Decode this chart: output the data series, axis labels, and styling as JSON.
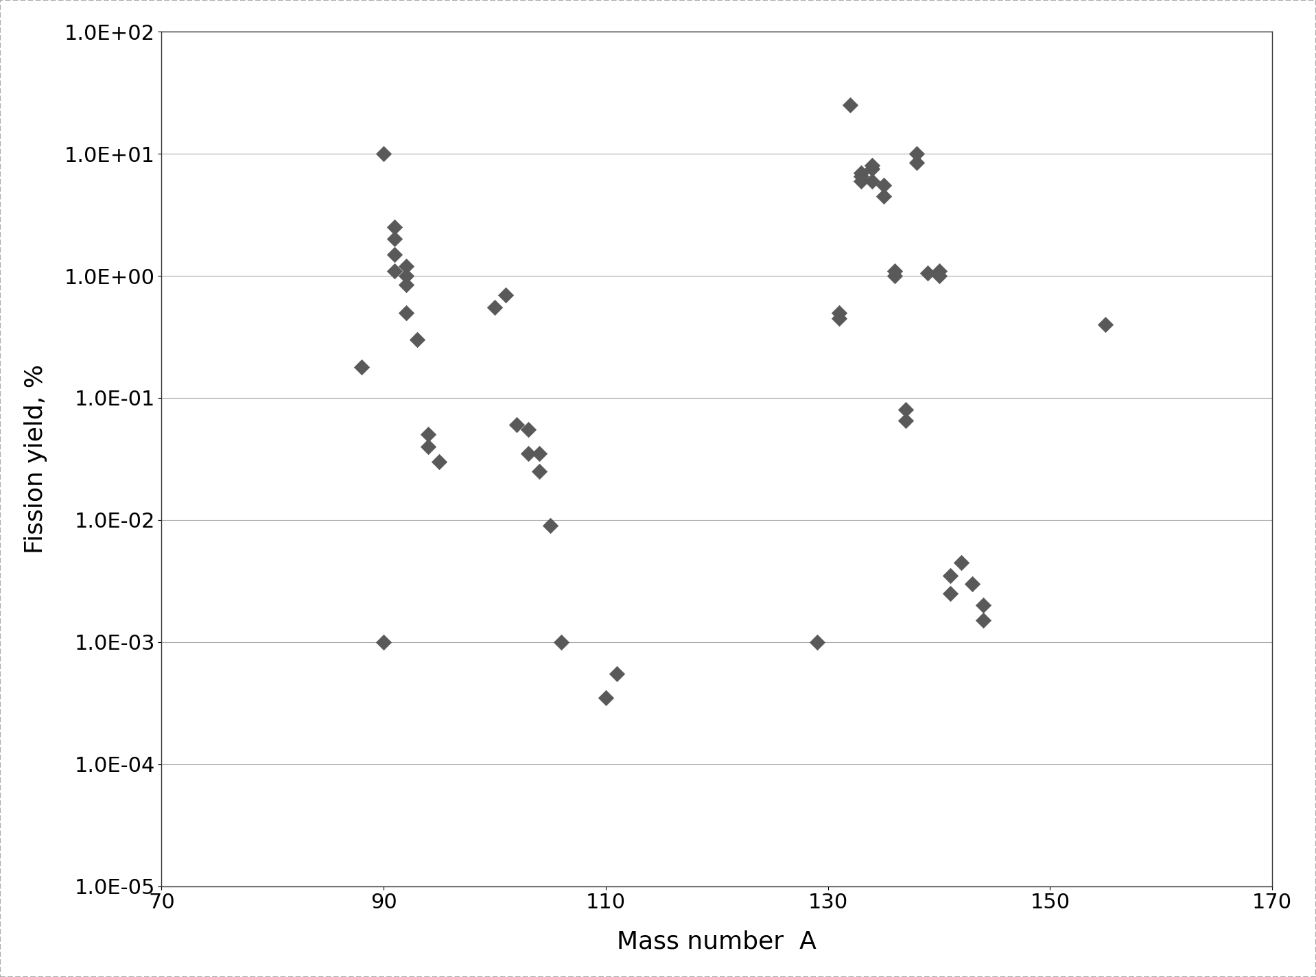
{
  "x_data": [
    88,
    90,
    90,
    91,
    91,
    91,
    91,
    92,
    92,
    92,
    92,
    93,
    94,
    94,
    95,
    100,
    101,
    102,
    103,
    103,
    104,
    104,
    105,
    106,
    110,
    111,
    129,
    131,
    131,
    132,
    133,
    133,
    133,
    134,
    134,
    134,
    135,
    135,
    136,
    136,
    137,
    137,
    138,
    138,
    139,
    140,
    140,
    141,
    141,
    142,
    143,
    144,
    144,
    155
  ],
  "y_data": [
    0.18,
    10.0,
    0.001,
    2.5,
    2.0,
    1.5,
    1.1,
    1.2,
    1.0,
    0.85,
    0.5,
    0.3,
    0.05,
    0.04,
    0.03,
    0.55,
    0.7,
    0.06,
    0.055,
    0.035,
    0.035,
    0.025,
    0.009,
    0.001,
    0.00035,
    0.00055,
    0.001,
    0.45,
    0.5,
    25.0,
    6.0,
    7.0,
    6.5,
    8.0,
    7.5,
    6.0,
    5.5,
    4.5,
    1.1,
    1.0,
    0.08,
    0.065,
    10.0,
    8.5,
    1.05,
    1.1,
    1.0,
    0.0035,
    0.0025,
    0.0045,
    0.003,
    0.0015,
    0.002,
    0.4
  ],
  "marker": "D",
  "marker_size": 130,
  "marker_color": "#595959",
  "xlabel": "Mass number  A",
  "ylabel": "Fission yield, %",
  "xlim": [
    70,
    170
  ],
  "ylim": [
    1e-05,
    100.0
  ],
  "xticks": [
    70,
    90,
    110,
    130,
    150,
    170
  ],
  "ytick_labels": [
    "1.0E-05",
    "1.0E-04",
    "1.0E-03",
    "1.0E-02",
    "1.0E-01",
    "1.0E+00",
    "1.0E+01",
    "1.0E+02"
  ],
  "ytick_values": [
    1e-05,
    0.0001,
    0.001,
    0.01,
    0.1,
    1.0,
    10.0,
    100.0
  ],
  "grid_color": "#aaaaaa",
  "background_color": "#ffffff",
  "xlabel_fontsize": 26,
  "ylabel_fontsize": 26,
  "tick_fontsize": 22,
  "outer_border_color": "#cccccc"
}
